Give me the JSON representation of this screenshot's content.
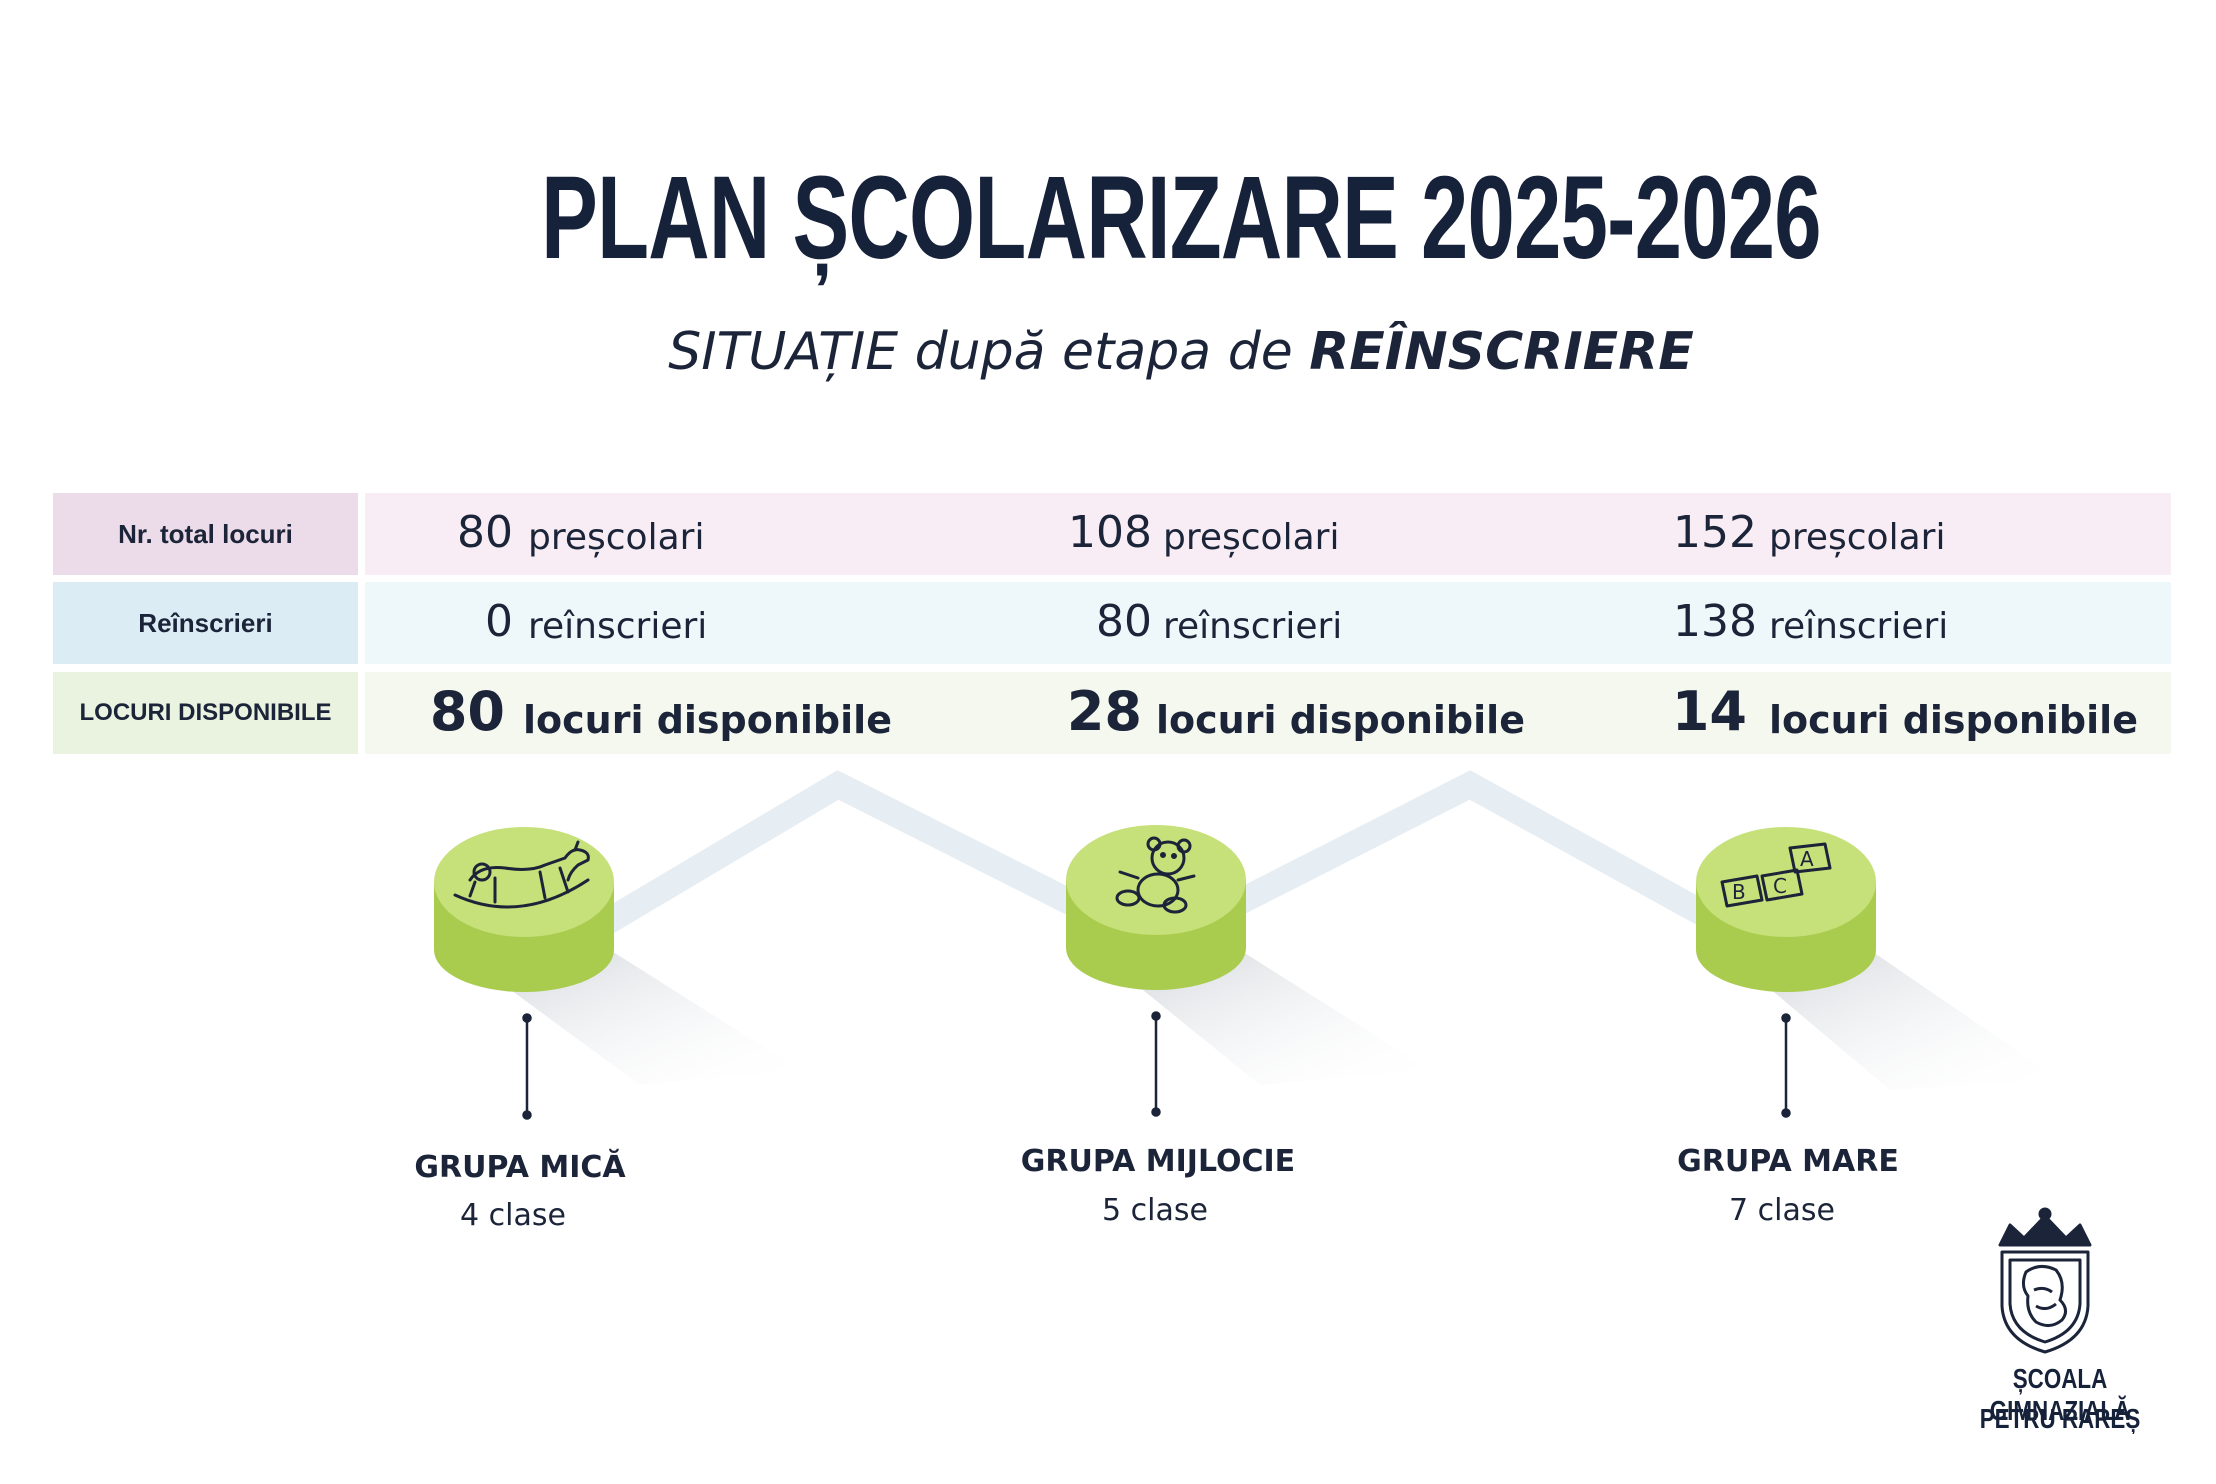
{
  "header": {
    "title": "PLAN ȘCOLARIZARE 2025-2026",
    "subtitle_regular": "SITUAȚIE după etapa de",
    "subtitle_bold": "REÎNSCRIERE"
  },
  "table": {
    "rows": [
      {
        "label": "Nr. total locuri",
        "cells": [
          {
            "num": "80",
            "unit": "preșcolari"
          },
          {
            "num": "108",
            "unit": "preșcolari"
          },
          {
            "num": "152",
            "unit": "preșcolari"
          }
        ]
      },
      {
        "label": "Reînscrieri",
        "cells": [
          {
            "num": "0",
            "unit": "reînscrieri"
          },
          {
            "num": "80",
            "unit": "reînscrieri"
          },
          {
            "num": "138",
            "unit": "reînscrieri"
          }
        ]
      },
      {
        "label": "LOCURI DISPONIBILE",
        "cells": [
          {
            "num": "80",
            "unit": "locuri disponibile"
          },
          {
            "num": "28",
            "unit": "locuri disponibile"
          },
          {
            "num": "14",
            "unit": "locuri disponibile"
          }
        ]
      }
    ]
  },
  "groups": [
    {
      "name": "GRUPA MICĂ",
      "classes": "4 clase",
      "icon": "rocking-horse-icon"
    },
    {
      "name": "GRUPA MIJLOCIE",
      "classes": "5 clase",
      "icon": "teddy-bear-icon"
    },
    {
      "name": "GRUPA MARE",
      "classes": "7 clase",
      "icon": "abc-blocks-icon"
    }
  ],
  "blocks": {
    "a": "A",
    "b": "B",
    "c": "C"
  },
  "school": {
    "line1": "ȘCOALA GIMNAZIALĂ",
    "line2": "PETRU RAREȘ"
  },
  "colors": {
    "title": "#16213a",
    "disc_top": "#c6e07a",
    "disc_side": "#a9cc4e",
    "zigzag": "#e6edf3"
  }
}
